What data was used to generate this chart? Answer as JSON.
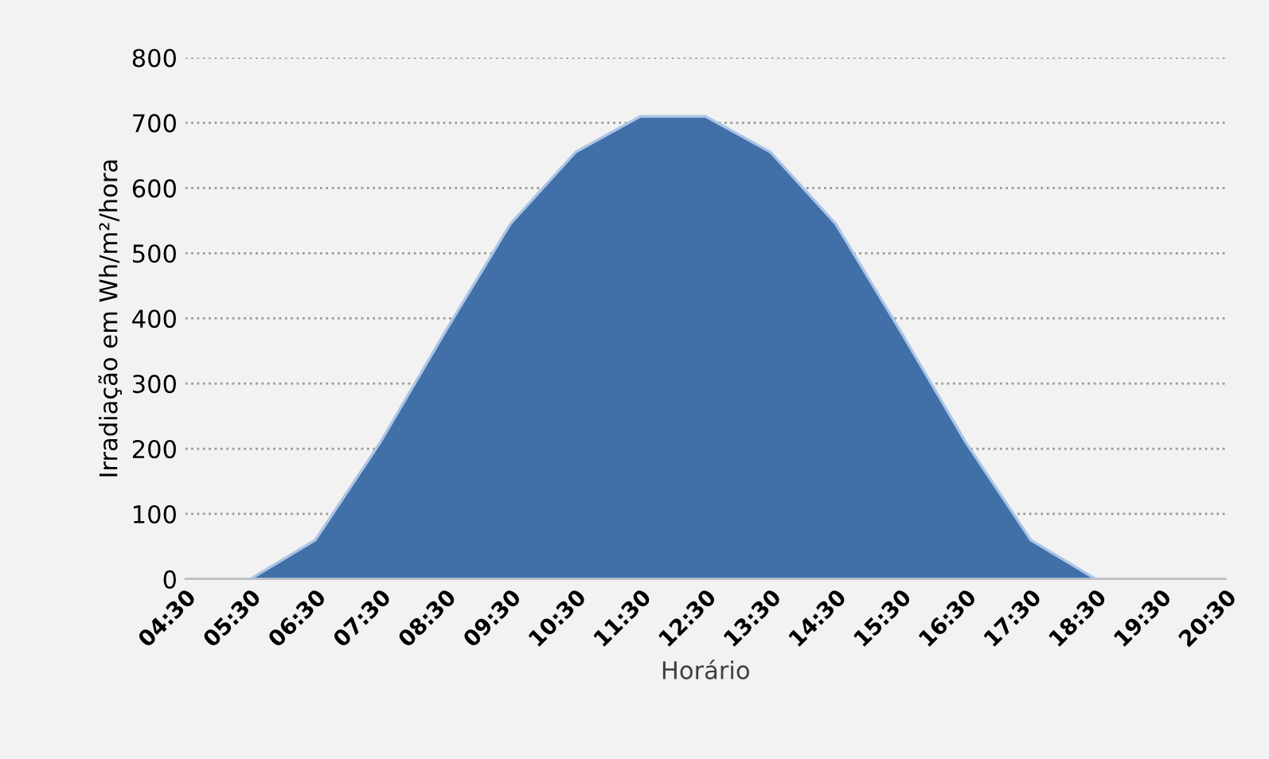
{
  "chart_data": {
    "type": "area",
    "xlabel": "Horário",
    "ylabel": "Irradiação em Wh/m²/hora",
    "categories": [
      "04:30",
      "05:30",
      "06:30",
      "07:30",
      "08:30",
      "09:30",
      "10:30",
      "11:30",
      "12:30",
      "13:30",
      "14:30",
      "15:30",
      "16:30",
      "17:30",
      "18:30",
      "19:30",
      "20:30"
    ],
    "series": [
      {
        "color": "#4170a8",
        "values": [
          0,
          0,
          60,
          210,
          380,
          545,
          655,
          710,
          710,
          655,
          545,
          380,
          210,
          60,
          0,
          0,
          0
        ]
      }
    ],
    "ylim": [
      0,
      800
    ],
    "yticks": [
      0,
      100,
      200,
      300,
      400,
      500,
      600,
      700,
      800
    ],
    "grid": "y"
  }
}
